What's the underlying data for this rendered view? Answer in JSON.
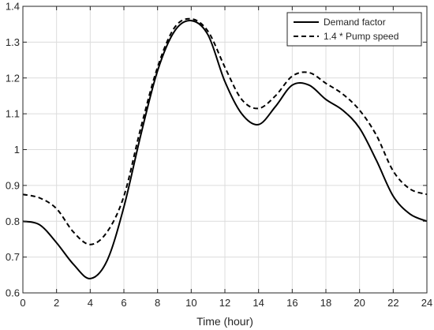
{
  "chart_data": {
    "type": "line",
    "title": "",
    "xlabel": "Time (hour)",
    "ylabel": "",
    "xlim": [
      0,
      24
    ],
    "ylim": [
      0.6,
      1.4
    ],
    "xticks": [
      0,
      2,
      4,
      6,
      8,
      10,
      12,
      14,
      16,
      18,
      20,
      22,
      24
    ],
    "yticks": [
      0.6,
      0.7,
      0.8,
      0.9,
      1,
      1.1,
      1.2,
      1.3,
      1.4
    ],
    "grid": true,
    "legend_position": "top-right",
    "series": [
      {
        "name": "Demand factor",
        "style": "solid",
        "color": "#000000",
        "x": [
          0,
          1,
          2,
          3,
          4,
          5,
          6,
          7,
          8,
          9,
          10,
          11,
          12,
          13,
          14,
          15,
          16,
          17,
          18,
          19,
          20,
          21,
          22,
          23,
          24
        ],
        "y": [
          0.8,
          0.79,
          0.74,
          0.68,
          0.64,
          0.69,
          0.84,
          1.04,
          1.22,
          1.33,
          1.36,
          1.32,
          1.19,
          1.1,
          1.07,
          1.12,
          1.18,
          1.18,
          1.14,
          1.11,
          1.06,
          0.97,
          0.87,
          0.82,
          0.8
        ]
      },
      {
        "name": "1.4 * Pump speed",
        "style": "dashed",
        "color": "#000000",
        "x": [
          0,
          1,
          2,
          3,
          4,
          5,
          6,
          7,
          8,
          9,
          10,
          11,
          12,
          13,
          14,
          15,
          16,
          17,
          18,
          19,
          20,
          21,
          22,
          23,
          24
        ],
        "y": [
          0.875,
          0.865,
          0.835,
          0.77,
          0.735,
          0.77,
          0.87,
          1.06,
          1.23,
          1.34,
          1.365,
          1.33,
          1.23,
          1.14,
          1.115,
          1.15,
          1.205,
          1.215,
          1.185,
          1.155,
          1.11,
          1.04,
          0.94,
          0.89,
          0.875
        ]
      }
    ]
  }
}
